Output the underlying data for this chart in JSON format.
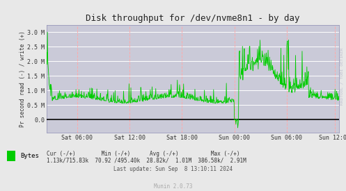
{
  "title": "Disk throughput for /dev/nvme8n1 - by day",
  "ylabel": "Pr second read (-) / write (+)",
  "xlabel_ticks": [
    "Sat 06:00",
    "Sat 12:00",
    "Sat 18:00",
    "Sun 00:00",
    "Sun 06:00",
    "Sun 12:00"
  ],
  "ylim": [
    -450000.0,
    3250000.0
  ],
  "yticks": [
    0.0,
    500000.0,
    1000000.0,
    1500000.0,
    2000000.0,
    2500000.0,
    3000000.0
  ],
  "ytick_labels": [
    "0.0",
    "0.5 M",
    "1.0 M",
    "1.5 M",
    "2.0 M",
    "2.5 M",
    "3.0 M"
  ],
  "bg_color": "#e8e8e8",
  "plot_bg_color": "#cacad8",
  "grid_h_color": "#ffffff",
  "grid_v_color": "#ffaaaa",
  "line_color": "#00cc00",
  "zero_line_color": "#000000",
  "legend_square_color": "#00cc00",
  "legend_text": "Bytes",
  "watermark": "RRDTOOL / TOBI OETIKER",
  "stats_row1": "         Cur (-/+)        Min (-/+)       Avg (-/+)           Max (-/+)",
  "stats_row2": "  1.13k/715.83k  70.92 /495.40k  28.82k/  1.01M  386.58k/  2.91M",
  "last_update": "Last update: Sun Sep  8 13:10:11 2024",
  "munin_version": "Munin 2.0.73",
  "n_points": 800,
  "total_hours": 33.5,
  "tick_hours": [
    3.5,
    9.5,
    15.5,
    21.5,
    27.5,
    33.0
  ]
}
